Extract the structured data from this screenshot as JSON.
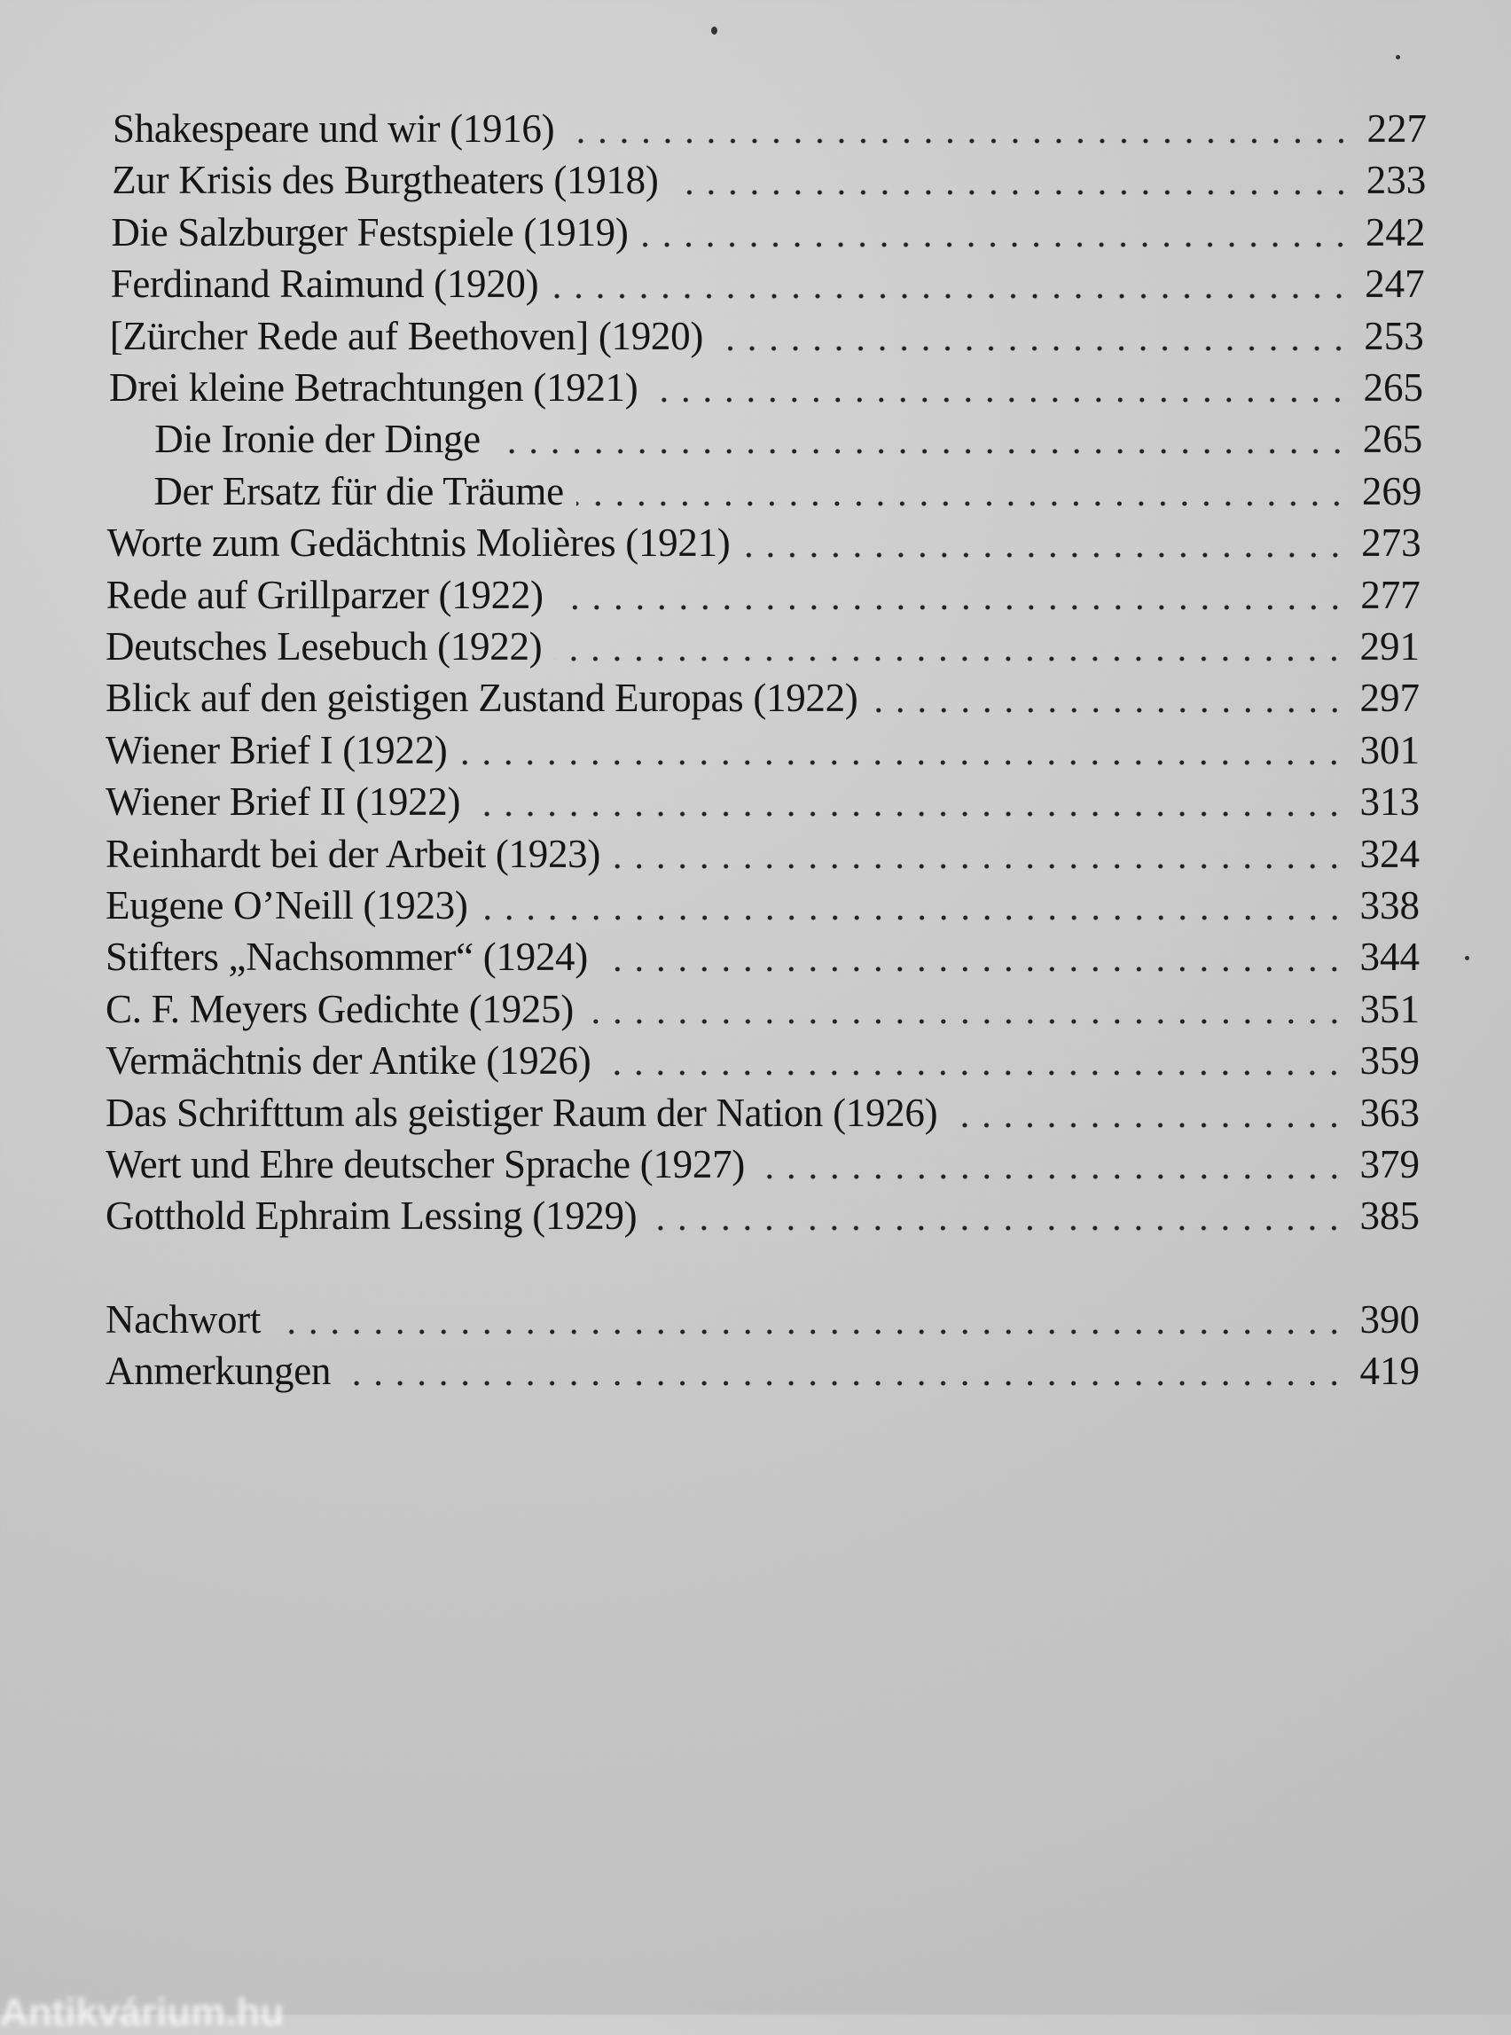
{
  "entries": [
    {
      "title": "Shakespeare und wir (1916)",
      "page": "227"
    },
    {
      "title": "Zur Krisis des Burgtheaters (1918)",
      "page": "233"
    },
    {
      "title": "Die Salzburger Festspiele (1919)",
      "page": "242"
    },
    {
      "title": "Ferdinand Raimund (1920)",
      "page": "247"
    },
    {
      "title": "[Zürcher Rede auf Beethoven] (1920)",
      "page": "253"
    },
    {
      "title": "Drei kleine Betrachtungen (1921)",
      "page": "265"
    },
    {
      "title": "Die Ironie der Dinge",
      "page": "265",
      "indent": true
    },
    {
      "title": "Der Ersatz für die Träume",
      "page": "269",
      "indent": true
    },
    {
      "title": "Worte zum Gedächtnis Molières (1921)",
      "page": "273"
    },
    {
      "title": "Rede auf Grillparzer (1922)",
      "page": "277"
    },
    {
      "title": "Deutsches Lesebuch (1922)",
      "page": "291"
    },
    {
      "title": "Blick auf den geistigen Zustand Europas (1922)",
      "page": "297"
    },
    {
      "title": "Wiener Brief I (1922)",
      "page": "301"
    },
    {
      "title": "Wiener Brief II (1922)",
      "page": "313"
    },
    {
      "title": "Reinhardt bei der Arbeit (1923)",
      "page": "324"
    },
    {
      "title": "Eugene O’Neill (1923)",
      "page": "338"
    },
    {
      "title": "Stifters „Nachsommer“ (1924)",
      "page": "344"
    },
    {
      "title": "C. F. Meyers Gedichte (1925)",
      "page": "351"
    },
    {
      "title": "Vermächtnis der Antike (1926)",
      "page": "359"
    },
    {
      "title": "Das Schrifttum als geistiger Raum der Nation (1926)",
      "page": "363"
    },
    {
      "title": "Wert und Ehre deutscher Sprache (1927)",
      "page": "379"
    },
    {
      "title": "Gotthold Ephraim Lessing (1929)",
      "page": "385"
    }
  ],
  "back_matter": [
    {
      "title": "Nachwort",
      "page": "390"
    },
    {
      "title": "Anmerkungen",
      "page": "419"
    }
  ],
  "watermark": "Antikvárium.hu"
}
